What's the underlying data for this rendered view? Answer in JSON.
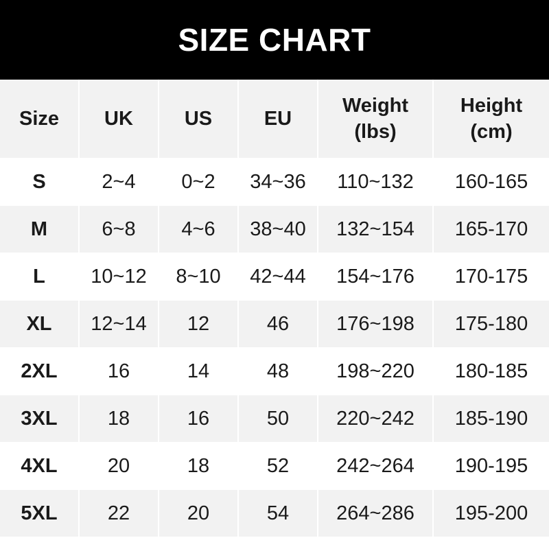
{
  "title": "SIZE CHART",
  "colors": {
    "title_background": "#000000",
    "title_text": "#ffffff",
    "header_background": "#f2f2f2",
    "stripe_background": "#f2f2f2"
  },
  "columns": [
    {
      "line1": "Size",
      "line2": ""
    },
    {
      "line1": "UK",
      "line2": ""
    },
    {
      "line1": "US",
      "line2": ""
    },
    {
      "line1": "EU",
      "line2": ""
    },
    {
      "line1": "Weight",
      "line2": "(lbs)"
    },
    {
      "line1": "Height",
      "line2": "(cm)"
    }
  ],
  "rows": [
    [
      "S",
      "2~4",
      "0~2",
      "34~36",
      "110~132",
      "160-165"
    ],
    [
      "M",
      "6~8",
      "4~6",
      "38~40",
      "132~154",
      "165-170"
    ],
    [
      "L",
      "10~12",
      "8~10",
      "42~44",
      "154~176",
      "170-175"
    ],
    [
      "XL",
      "12~14",
      "12",
      "46",
      "176~198",
      "175-180"
    ],
    [
      "2XL",
      "16",
      "14",
      "48",
      "198~220",
      "180-185"
    ],
    [
      "3XL",
      "18",
      "16",
      "50",
      "220~242",
      "185-190"
    ],
    [
      "4XL",
      "20",
      "18",
      "52",
      "242~264",
      "190-195"
    ],
    [
      "5XL",
      "22",
      "20",
      "54",
      "264~286",
      "195-200"
    ]
  ]
}
